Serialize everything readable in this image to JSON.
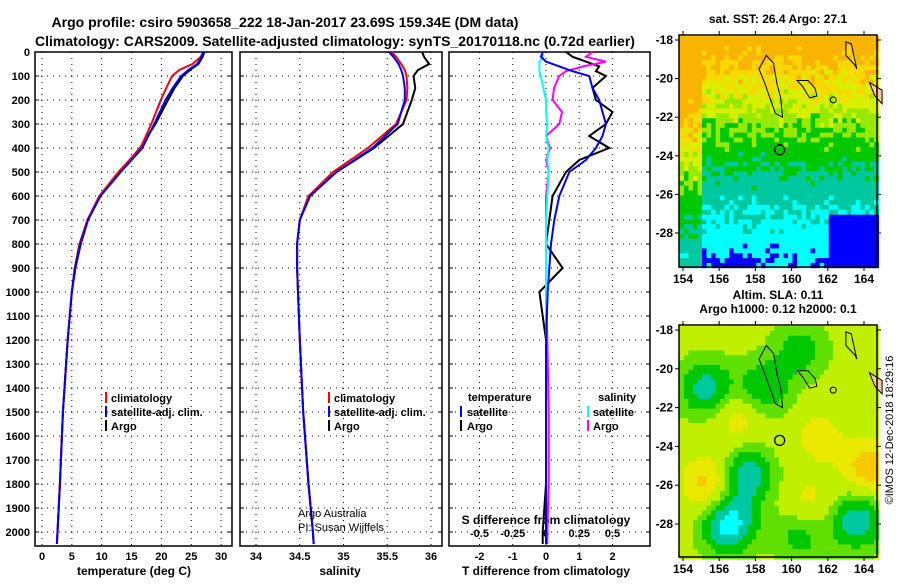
{
  "title_line1": "Argo profile: csiro 5903658_222 18-Jan-2017 23.69S 159.34E (DM data)",
  "title_line2": "Climatology: CARS2009. Satellite-adjusted climatology: synTS_20170118.nc (0.72d earlier)",
  "credit": "©IMOS 12-Dec-2018 18:29:16",
  "colors": {
    "climatology": "#ff0000",
    "satellite": "#0000ff",
    "argo": "#000000",
    "sal_satellite": "#00ffff",
    "sal_argo": "#ff00ff"
  },
  "chart_data": [
    {
      "type": "line",
      "name": "temperature-profile",
      "xlabel": "temperature (deg C)",
      "xlim": [
        -1,
        32
      ],
      "ylim": [
        2050,
        0
      ],
      "xticks": [
        "0",
        "5",
        "10",
        "15",
        "20",
        "25",
        "30"
      ],
      "yticks": [
        "0",
        "100",
        "200",
        "300",
        "400",
        "500",
        "600",
        "700",
        "800",
        "900",
        "1000",
        "1100",
        "1200",
        "1300",
        "1400",
        "1500",
        "1600",
        "1700",
        "1800",
        "1900",
        "2000"
      ],
      "grid": true,
      "legend": [
        "climatology",
        "satellite-adj. clim.",
        "Argo"
      ],
      "depth": [
        0,
        20,
        50,
        75,
        100,
        150,
        200,
        300,
        400,
        500,
        600,
        700,
        800,
        900,
        1000,
        1200,
        1500,
        1800,
        2000,
        2050
      ],
      "series": [
        {
          "name": "climatology",
          "values": [
            27.0,
            26.6,
            25.2,
            23.0,
            21.8,
            20.8,
            19.9,
            18.3,
            16.5,
            12.8,
            9.6,
            7.6,
            6.4,
            5.6,
            5.0,
            4.3,
            3.5,
            3.0,
            2.6,
            2.5
          ]
        },
        {
          "name": "satellite-adj. clim.",
          "values": [
            27.0,
            26.7,
            26.0,
            24.5,
            23.3,
            21.9,
            20.7,
            18.8,
            16.8,
            13.2,
            9.8,
            7.7,
            6.5,
            5.6,
            5.0,
            4.3,
            3.5,
            3.0,
            2.6,
            2.5
          ]
        },
        {
          "name": "Argo",
          "values": [
            27.2,
            26.9,
            26.2,
            24.8,
            23.6,
            22.2,
            21.1,
            19.0,
            16.4,
            13.0,
            9.7,
            7.6,
            6.3,
            5.5,
            5.0,
            4.3,
            3.5,
            3.0,
            2.6,
            2.5
          ]
        }
      ]
    },
    {
      "type": "line",
      "name": "salinity-profile",
      "xlabel": "salinity",
      "xlim": [
        33.8,
        36.2
      ],
      "ylim": [
        2050,
        0
      ],
      "xticks": [
        "34",
        "34.5",
        "35",
        "35.5",
        "36"
      ],
      "grid": true,
      "legend": [
        "climatology",
        "satellite-adj. clim.",
        "Argo"
      ],
      "annotation": [
        "Argo Australia",
        "PI: Susan Wijffels"
      ],
      "depth": [
        0,
        20,
        50,
        75,
        100,
        150,
        200,
        300,
        400,
        500,
        600,
        700,
        800,
        900,
        1000,
        1200,
        1500,
        1800,
        2000,
        2050
      ],
      "series": [
        {
          "name": "climatology",
          "values": [
            35.55,
            35.6,
            35.66,
            35.7,
            35.72,
            35.73,
            35.72,
            35.6,
            35.28,
            34.88,
            34.6,
            34.5,
            34.47,
            34.47,
            34.48,
            34.5,
            34.54,
            34.6,
            34.65,
            34.66
          ]
        },
        {
          "name": "satellite-adj. clim.",
          "values": [
            35.52,
            35.57,
            35.63,
            35.66,
            35.68,
            35.7,
            35.7,
            35.62,
            35.33,
            34.92,
            34.62,
            34.5,
            34.47,
            34.47,
            34.48,
            34.5,
            34.54,
            34.6,
            34.65,
            34.66
          ]
        },
        {
          "name": "Argo",
          "values": [
            35.9,
            35.92,
            35.98,
            35.85,
            35.8,
            35.82,
            35.78,
            35.68,
            35.35,
            34.92,
            34.6,
            34.5,
            34.47,
            34.47,
            34.48,
            34.5,
            34.54,
            34.6,
            34.65,
            34.66
          ]
        }
      ]
    },
    {
      "type": "line",
      "name": "difference-profile",
      "xlabel": "T difference from climatology",
      "x2label": "S difference from climatology",
      "xlim": [
        -2.9,
        2.9
      ],
      "x2lim": [
        -0.725,
        0.725
      ],
      "ylim": [
        2050,
        0
      ],
      "xticks": [
        "-2",
        "-1",
        "0",
        "1",
        "2"
      ],
      "x2ticks": [
        "-0.5",
        "-0.25",
        "0",
        "0.25",
        "0.5"
      ],
      "grid": true,
      "legend_left_title": "temperature",
      "legend_right_title": "salinity",
      "legend_left": [
        "satellite",
        "Argo"
      ],
      "legend_right": [
        "satellite",
        "Argo"
      ],
      "depth": [
        0,
        20,
        40,
        60,
        80,
        100,
        150,
        200,
        250,
        300,
        350,
        400,
        450,
        500,
        600,
        700,
        800,
        900,
        1000,
        1200,
        1500,
        1800,
        2000,
        2050
      ],
      "series": [
        {
          "name": "T satellite",
          "values": [
            -0.1,
            -0.15,
            0.0,
            0.4,
            0.8,
            1.3,
            1.4,
            1.6,
            1.7,
            1.8,
            1.7,
            1.5,
            1.2,
            0.7,
            0.4,
            0.25,
            0.15,
            0.1,
            0.05,
            0.0,
            0.0,
            0.0,
            0.0,
            0.0
          ]
        },
        {
          "name": "T Argo",
          "values": [
            0.6,
            0.8,
            1.2,
            1.6,
            1.5,
            1.8,
            1.4,
            1.5,
            2.0,
            1.8,
            1.3,
            1.9,
            1.0,
            0.6,
            0.2,
            0.1,
            0.0,
            0.5,
            -0.2,
            0.0,
            0.0,
            0.0,
            -0.1,
            -0.1
          ]
        },
        {
          "name": "S satellite",
          "values": [
            -0.03,
            -0.02,
            -0.05,
            -0.05,
            -0.05,
            -0.04,
            -0.02,
            0.0,
            0.0,
            0.01,
            0.0,
            0.02,
            0.01,
            0.02,
            0.01,
            0.0,
            0.0,
            0.0,
            0.0,
            0.0,
            0.0,
            0.0,
            0.0,
            0.0
          ]
        },
        {
          "name": "S Argo",
          "values": [
            0.35,
            0.3,
            0.45,
            0.28,
            0.15,
            0.1,
            0.06,
            0.05,
            0.12,
            0.1,
            0.0,
            0.03,
            0.0,
            0.02,
            0.0,
            0.0,
            0.0,
            0.0,
            0.0,
            0.01,
            0.02,
            0.02,
            0.01,
            0.01
          ]
        }
      ]
    },
    {
      "type": "heatmap",
      "name": "sst-map",
      "title": "sat. SST: 26.4 Argo: 27.1",
      "xlim": [
        153.8,
        165
      ],
      "ylim": [
        -29.7,
        -17.8
      ],
      "xticks": [
        "154",
        "156",
        "158",
        "160",
        "162",
        "164"
      ],
      "yticks": [
        "-18",
        "-20",
        "-22",
        "-24",
        "-26",
        "-28"
      ],
      "marker": {
        "lon": 159.34,
        "lat": -23.69
      }
    },
    {
      "type": "heatmap",
      "name": "sla-map",
      "title": "Altim. SLA: 0.11",
      "subtitle": "Argo h1000: 0.12 h2000: 0.1",
      "xlim": [
        153.8,
        165
      ],
      "ylim": [
        -29.7,
        -17.8
      ],
      "xticks": [
        "154",
        "156",
        "158",
        "160",
        "162",
        "164"
      ],
      "yticks": [
        "-18",
        "-20",
        "-22",
        "-24",
        "-26",
        "-28"
      ],
      "marker": {
        "lon": 159.34,
        "lat": -23.69
      }
    }
  ]
}
